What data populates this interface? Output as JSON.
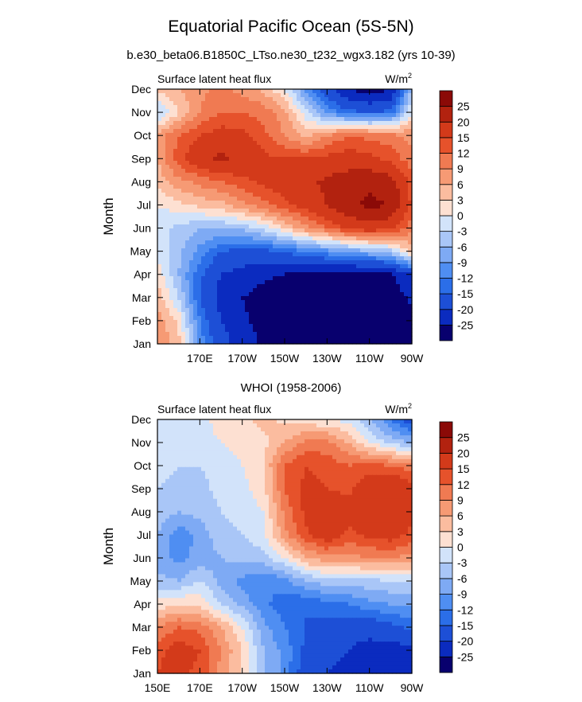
{
  "figure": {
    "title": "Equatorial Pacific Ocean (5S-5N)",
    "subtitle": "b.e30_beta06.B1850C_LTso.ne30_t232_wgx3.182 (yrs 10-39)"
  },
  "colors": {
    "levels": [
      "#08006e",
      "#0b2bbf",
      "#1d4fd6",
      "#2b6ee8",
      "#4f8ef2",
      "#7eaaf4",
      "#a9c6f7",
      "#d2e3fa",
      "#fde0d2",
      "#fbbc9f",
      "#f69a74",
      "#f07a52",
      "#e6522b",
      "#d33a1a",
      "#b2220f",
      "#8b0a07"
    ],
    "colorbar_labels": [
      "-25",
      "-20",
      "-15",
      "-12",
      "-9",
      "-6",
      "-3",
      "0",
      "3",
      "6",
      "9",
      "12",
      "15",
      "20",
      "25"
    ]
  },
  "chart_data": [
    {
      "type": "heatmap",
      "panel_title": "",
      "left_label": "Surface latent heat flux",
      "units_label": "W/m",
      "units_superscript": "2",
      "ylabel": "Month",
      "y_categories": [
        "Jan",
        "Feb",
        "Mar",
        "Apr",
        "May",
        "Jun",
        "Jul",
        "Aug",
        "Sep",
        "Oct",
        "Nov",
        "Dec"
      ],
      "x_ticks": [
        "170E",
        "170W",
        "150W",
        "130W",
        "110W",
        "90W"
      ],
      "x_lon": [
        150,
        160,
        170,
        180,
        190,
        200,
        210,
        220,
        230,
        240,
        250,
        260,
        270
      ],
      "months_rows_jan_to_dec": [
        [
          9,
          4,
          -10,
          -18,
          -22,
          -26,
          -27,
          -27,
          -28,
          -29,
          -29,
          -29,
          -25
        ],
        [
          8,
          2,
          -12,
          -20,
          -24,
          -27,
          -27,
          -28,
          -28,
          -29,
          -29,
          -29,
          -26
        ],
        [
          5,
          -3,
          -15,
          -22,
          -25,
          -27,
          -28,
          -28,
          -28,
          -28,
          -28,
          -28,
          -24
        ],
        [
          2,
          -6,
          -14,
          -20,
          -22,
          -24,
          -25,
          -26,
          -26,
          -27,
          -27,
          -26,
          -20
        ],
        [
          -1,
          -5,
          -10,
          -15,
          -16,
          -16,
          -14,
          -12,
          -10,
          -8,
          -6,
          -4,
          5
        ],
        [
          -2,
          -4,
          -6,
          -6,
          -5,
          -2,
          3,
          8,
          12,
          16,
          18,
          16,
          10
        ],
        [
          0,
          2,
          4,
          5,
          8,
          11,
          14,
          17,
          20,
          24,
          26,
          25,
          14
        ],
        [
          4,
          8,
          10,
          12,
          14,
          16,
          17,
          19,
          21,
          23,
          24,
          22,
          14
        ],
        [
          6,
          14,
          18,
          21,
          18,
          16,
          15,
          15,
          16,
          17,
          16,
          14,
          10
        ],
        [
          7,
          12,
          15,
          17,
          16,
          13,
          9,
          5,
          9,
          12,
          11,
          10,
          8
        ],
        [
          -4,
          3,
          9,
          12,
          12,
          11,
          7,
          -2,
          -10,
          -14,
          -15,
          -14,
          0
        ],
        [
          4,
          6,
          8,
          10,
          8,
          5,
          0,
          -10,
          -18,
          -25,
          -28,
          -25,
          -5
        ]
      ]
    },
    {
      "type": "heatmap",
      "panel_title": "WHOI (1958-2006)",
      "left_label": "Surface latent heat flux",
      "units_label": "W/m",
      "units_superscript": "2",
      "ylabel": "Month",
      "y_categories": [
        "Jan",
        "Feb",
        "Mar",
        "Apr",
        "May",
        "Jun",
        "Jul",
        "Aug",
        "Sep",
        "Oct",
        "Nov",
        "Dec"
      ],
      "x_ticks": [
        "150E",
        "170E",
        "170W",
        "150W",
        "130W",
        "110W",
        "90W"
      ],
      "x_lon": [
        150,
        160,
        170,
        180,
        190,
        200,
        210,
        220,
        230,
        240,
        250,
        260,
        270
      ],
      "months_rows_jan_to_dec": [
        [
          15,
          16,
          14,
          8,
          2,
          -6,
          -10,
          -18,
          -20,
          -22,
          -24,
          -24,
          -24
        ],
        [
          14,
          17,
          15,
          9,
          3,
          -6,
          -10,
          -16,
          -18,
          -20,
          -22,
          -22,
          -22
        ],
        [
          9,
          12,
          11,
          6,
          0,
          -8,
          -12,
          -15,
          -16,
          -18,
          -18,
          -16,
          -14
        ],
        [
          1,
          3,
          2,
          -3,
          -7,
          -11,
          -14,
          -15,
          -13,
          -12,
          -10,
          -9,
          -8
        ],
        [
          -5,
          -6,
          -3,
          -7,
          -10,
          -12,
          -10,
          -6,
          -4,
          -4,
          -4,
          -3,
          -3
        ],
        [
          -8,
          -10,
          -8,
          -6,
          -5,
          -4,
          0,
          6,
          8,
          8,
          9,
          9,
          8
        ],
        [
          -6,
          -11,
          -8,
          -4,
          -3,
          -1,
          8,
          14,
          18,
          14,
          16,
          17,
          14
        ],
        [
          -4,
          -6,
          -5,
          -3,
          -2,
          0,
          10,
          16,
          19,
          17,
          18,
          19,
          16
        ],
        [
          -3,
          -4,
          -4,
          -2,
          -1,
          2,
          12,
          16,
          15,
          14,
          18,
          20,
          17
        ],
        [
          -2,
          -3,
          -3,
          -2,
          0,
          3,
          12,
          15,
          14,
          12,
          13,
          12,
          10
        ],
        [
          -1,
          -2,
          -1,
          0,
          1,
          2,
          6,
          10,
          10,
          6,
          0,
          -4,
          -6
        ],
        [
          -2,
          -3,
          -1,
          1,
          2,
          4,
          2,
          1,
          0,
          -1,
          -6,
          -12,
          -18
        ]
      ]
    }
  ]
}
